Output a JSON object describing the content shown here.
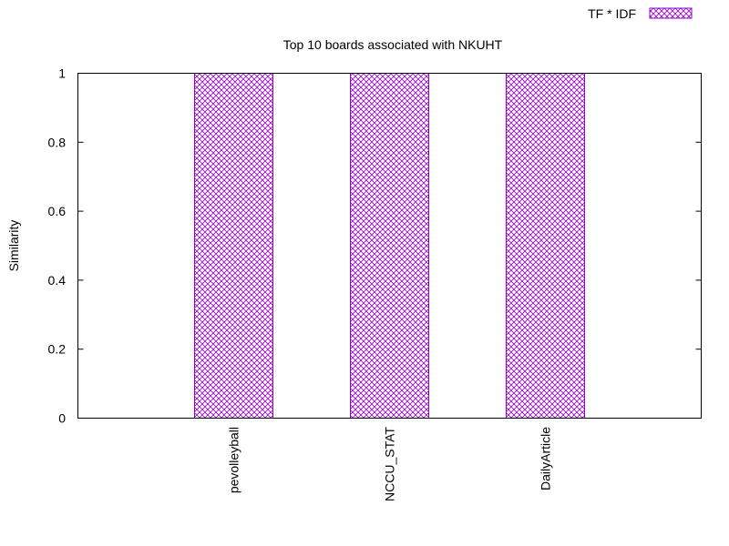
{
  "chart_data": {
    "type": "bar",
    "title": "Top 10 boards associated with NKUHT",
    "ylabel": "Similarity",
    "xlabel": "",
    "categories": [
      "pevolleyball",
      "NCCU_STAT",
      "DailyArticle"
    ],
    "series": [
      {
        "name": "TF * IDF",
        "values": [
          1,
          1,
          1
        ]
      }
    ],
    "ylim": [
      0,
      1
    ],
    "yticks": [
      "0",
      "0.2",
      "0.4",
      "0.6",
      "0.8",
      "1"
    ],
    "grid": false,
    "legend_position": "top-right",
    "bar_pattern": "crosshatch",
    "bar_color": "#9400d3"
  }
}
